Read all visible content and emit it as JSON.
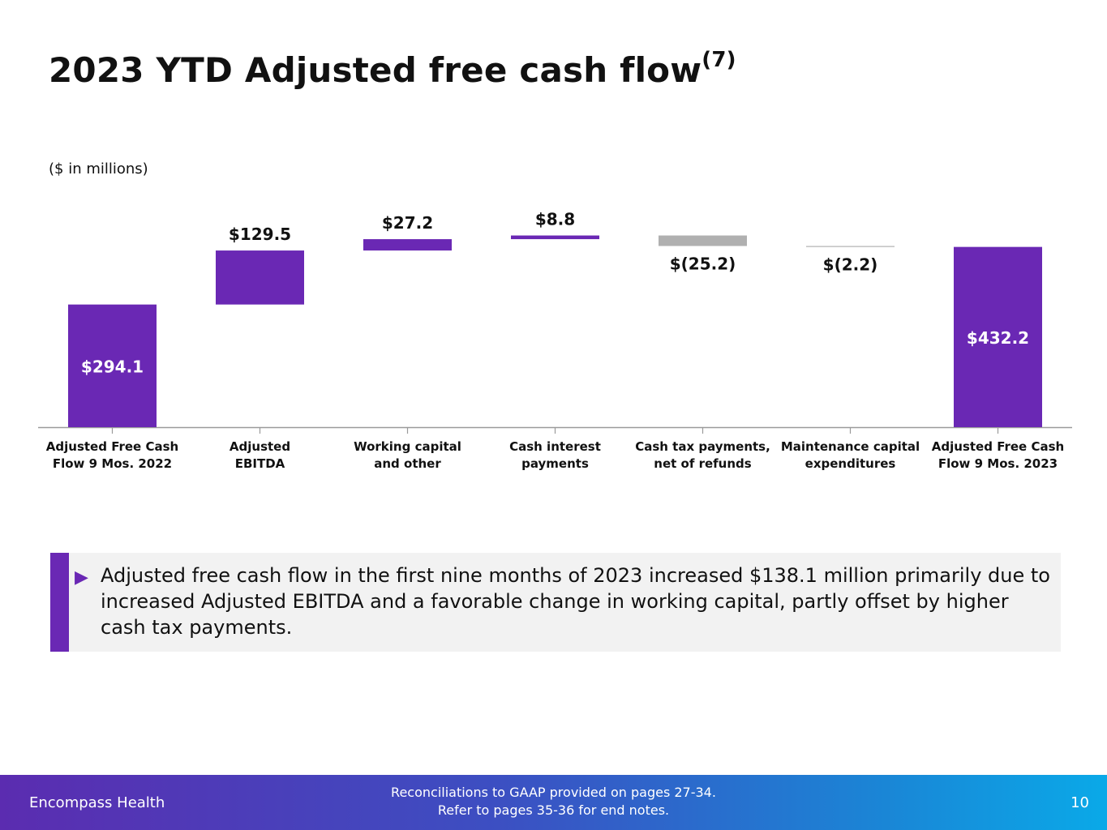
{
  "title": "2023 YTD Adjusted free cash flow",
  "title_superscript": "(7)",
  "units_note": "($ in millions)",
  "chart_data": {
    "type": "waterfall",
    "categories": [
      [
        "Adjusted Free Cash",
        "Flow 9 Mos. 2022"
      ],
      [
        "Adjusted",
        "EBITDA"
      ],
      [
        "Working capital",
        "and other"
      ],
      [
        "Cash interest",
        "payments"
      ],
      [
        "Cash tax payments,",
        "net of refunds"
      ],
      [
        "Maintenance capital",
        "expenditures"
      ],
      [
        "Adjusted Free Cash",
        "Flow 9 Mos. 2023"
      ]
    ],
    "values": [
      294.1,
      129.5,
      27.2,
      8.8,
      -25.2,
      -2.2,
      432.2
    ],
    "kinds": [
      "total",
      "delta",
      "delta",
      "delta",
      "delta",
      "delta",
      "total"
    ],
    "data_labels": [
      "$294.1",
      "$129.5",
      "$27.2",
      "$8.8",
      "$(25.2)",
      "$(2.2)",
      "$432.2"
    ],
    "colors": {
      "positive": "#6a28b4",
      "negative": "#b0b0b0",
      "axis": "#9a9a9a"
    }
  },
  "callout": {
    "text": "Adjusted free cash flow in the first nine months of 2023 increased $138.1 million primarily due to increased Adjusted EBITDA and a favorable change in working capital, partly offset by higher cash tax payments."
  },
  "footer": {
    "brand": "Encompass Health",
    "note_line1": "Reconciliations to GAAP provided on pages 27-34.",
    "note_line2": "Refer to pages 35-36 for end notes.",
    "page_number": "10"
  }
}
